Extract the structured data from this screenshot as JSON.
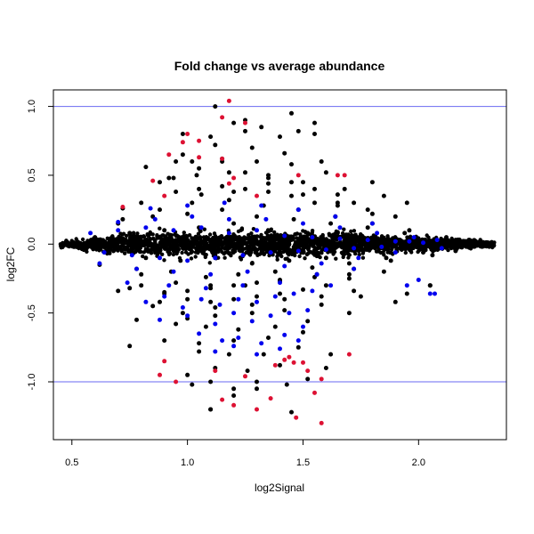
{
  "chart_data": {
    "type": "scatter",
    "title": "Fold change vs average abundance",
    "xlabel": "log2Signal",
    "ylabel": "log2FC",
    "xlim": [
      0.42,
      2.38
    ],
    "ylim": [
      -1.42,
      1.12
    ],
    "xticks": [
      0.5,
      1.0,
      1.5,
      2.0
    ],
    "xtick_labels": [
      "0.5",
      "1.0",
      "1.5",
      "2.0"
    ],
    "yticks": [
      -1.0,
      -0.5,
      0.0,
      0.5,
      1.0
    ],
    "ytick_labels": [
      "-1.0",
      "-0.5",
      "0.0",
      "0.5",
      "1.0"
    ],
    "grid": false,
    "legend": "none",
    "reference_lines": [
      {
        "axis": "y",
        "value": 1.0,
        "color": "#6a6af0"
      },
      {
        "axis": "y",
        "value": -1.0,
        "color": "#6a6af0"
      }
    ],
    "series": [
      {
        "color": "#000000",
        "x": [
          0.52,
          0.6,
          0.68,
          0.75,
          0.82,
          0.9,
          0.97,
          1.05,
          1.12,
          1.2,
          1.28,
          1.36,
          1.44,
          1.52,
          1.6,
          1.68,
          1.76,
          1.84,
          1.92,
          2.0,
          2.1,
          2.2,
          2.3,
          0.7,
          0.78,
          0.85,
          0.93,
          1.0,
          1.08,
          1.15,
          1.22,
          1.3,
          1.38,
          1.46,
          1.54,
          1.62,
          1.7,
          1.78,
          1.86,
          1.94,
          2.02,
          2.12,
          2.22,
          0.62,
          0.72,
          0.8,
          0.88,
          0.95,
          1.02,
          1.1,
          1.18,
          1.25,
          1.33,
          1.4,
          1.48,
          1.56,
          1.64,
          1.72,
          1.8,
          1.88,
          1.96,
          2.06,
          2.16,
          0.75,
          0.8,
          0.9,
          0.95,
          1.0,
          1.05,
          1.1,
          1.15,
          1.2,
          1.25,
          1.3,
          1.35,
          1.4,
          1.45,
          1.5,
          1.55,
          1.6,
          1.65,
          1.7,
          1.8,
          1.9,
          0.72,
          0.85,
          0.92,
          0.98,
          1.04,
          1.12,
          1.18,
          1.28,
          1.35,
          1.42,
          1.5,
          1.58,
          1.68,
          1.75,
          1.85,
          1.95,
          2.05,
          0.78,
          0.88,
          0.95,
          1.02,
          1.08,
          1.15,
          1.22,
          1.3,
          1.38,
          1.45,
          1.52,
          1.6,
          1.7,
          1.8,
          0.9,
          0.98,
          1.05,
          1.12,
          1.2,
          1.28,
          1.35,
          1.42,
          1.5,
          1.58,
          0.98,
          1.05,
          1.1,
          1.18,
          1.25,
          1.33,
          1.4,
          1.48,
          1.0,
          1.12,
          1.2,
          1.26,
          1.32,
          1.4,
          1.48,
          1.55,
          0.75,
          0.82,
          0.88,
          0.94,
          1.0,
          1.06,
          1.12,
          1.2,
          1.28,
          1.35,
          1.42,
          1.5,
          1.58,
          1.65,
          1.72,
          0.95,
          1.05,
          1.15,
          1.25,
          1.35,
          1.45,
          1.55,
          1.65,
          1.72,
          1.78,
          1.1,
          1.2,
          1.3,
          1.43,
          1.52,
          1.6,
          1.1,
          1.12,
          1.25,
          1.45,
          1.55,
          1.02,
          1.1,
          1.2,
          1.3,
          1.45,
          1.62,
          0.7,
          0.8,
          0.9,
          1.0,
          1.1,
          1.2,
          1.3,
          1.4,
          1.55,
          1.7,
          1.85,
          1.9,
          1.95,
          2.05
        ],
        "y": [
          -0.02,
          0.05,
          -0.05,
          0.08,
          -0.1,
          0.1,
          -0.12,
          0.12,
          -0.08,
          0.15,
          -0.14,
          0.1,
          -0.12,
          0.08,
          -0.1,
          0.06,
          -0.05,
          0.04,
          -0.03,
          0.03,
          -0.01,
          0.02,
          0.0,
          0.15,
          -0.18,
          0.2,
          -0.2,
          0.22,
          -0.24,
          0.25,
          -0.22,
          0.2,
          -0.2,
          0.18,
          -0.17,
          0.15,
          -0.14,
          0.12,
          -0.1,
          0.08,
          -0.06,
          0.05,
          0.03,
          -0.15,
          0.18,
          -0.22,
          0.25,
          -0.28,
          0.3,
          -0.3,
          0.32,
          -0.3,
          0.28,
          -0.27,
          0.25,
          -0.22,
          0.2,
          -0.18,
          0.15,
          -0.12,
          0.1,
          -0.08,
          -0.05,
          -0.32,
          0.3,
          -0.35,
          0.38,
          -0.4,
          0.4,
          -0.42,
          0.42,
          -0.4,
          0.4,
          -0.38,
          0.38,
          -0.36,
          0.35,
          -0.33,
          0.3,
          -0.3,
          0.28,
          -0.25,
          0.22,
          0.2,
          0.26,
          -0.45,
          0.48,
          -0.5,
          0.5,
          -0.52,
          0.52,
          -0.5,
          0.5,
          -0.48,
          0.45,
          -0.44,
          0.4,
          -0.38,
          0.35,
          0.3,
          -0.3,
          -0.55,
          0.45,
          -0.58,
          0.6,
          -0.6,
          0.62,
          -0.62,
          0.6,
          -0.6,
          0.58,
          -0.56,
          0.52,
          -0.5,
          0.45,
          -0.7,
          0.65,
          -0.72,
          0.72,
          -0.7,
          0.7,
          -0.68,
          0.66,
          -0.64,
          0.6,
          0.8,
          -0.78,
          0.78,
          -0.8,
          0.82,
          -0.8,
          0.78,
          -0.75,
          -0.95,
          -0.9,
          0.88,
          -0.92,
          0.85,
          -0.88,
          0.82,
          0.8,
          -0.74,
          0.56,
          -0.42,
          0.48,
          -0.54,
          0.36,
          -0.46,
          0.38,
          -0.44,
          0.44,
          -0.4,
          0.36,
          -0.38,
          0.3,
          -0.34,
          0.6,
          0.55,
          0.6,
          0.52,
          0.48,
          0.45,
          0.4,
          0.36,
          0.3,
          0.25,
          -1.0,
          -1.05,
          -1.0,
          -1.02,
          -0.98,
          -0.9,
          -1.2,
          1.0,
          0.9,
          0.95,
          0.88,
          -1.02,
          -1.2,
          -1.1,
          -1.05,
          -1.22,
          -0.8,
          -0.34,
          -0.3,
          -0.36,
          -0.34,
          -0.32,
          -0.3,
          -0.28,
          -0.26,
          -0.24,
          -0.22,
          -0.2,
          -0.42,
          -0.36,
          -0.3
        ]
      },
      {
        "color": "#0000ee",
        "x": [
          0.58,
          0.64,
          0.7,
          0.76,
          0.82,
          0.88,
          0.94,
          1.0,
          1.06,
          1.12,
          1.18,
          1.24,
          1.3,
          1.36,
          1.42,
          1.48,
          1.54,
          1.6,
          1.66,
          1.72,
          1.78,
          1.84,
          1.9,
          1.96,
          2.02,
          2.08,
          2.1,
          0.62,
          0.7,
          0.78,
          0.86,
          0.94,
          1.02,
          1.1,
          1.18,
          1.26,
          1.34,
          1.42,
          1.5,
          1.58,
          1.66,
          1.74,
          1.82,
          1.9,
          1.98,
          0.74,
          0.84,
          0.92,
          1.0,
          1.08,
          1.16,
          1.24,
          1.32,
          1.4,
          1.48,
          1.56,
          1.64,
          1.72,
          1.8,
          0.82,
          0.9,
          0.98,
          1.06,
          1.14,
          1.22,
          1.3,
          1.38,
          1.46,
          1.54,
          1.62,
          0.88,
          1.0,
          1.12,
          1.2,
          1.28,
          1.36,
          1.44,
          1.52,
          1.05,
          1.15,
          1.22,
          1.32,
          1.42,
          1.5,
          1.12,
          1.2,
          1.3,
          1.4,
          1.48,
          1.95,
          2.05,
          2.07,
          2.0
        ],
        "y": [
          0.08,
          -0.06,
          0.1,
          -0.08,
          0.12,
          -0.1,
          0.1,
          -0.12,
          0.12,
          -0.1,
          0.08,
          -0.08,
          0.1,
          -0.06,
          0.06,
          -0.05,
          0.05,
          -0.04,
          0.04,
          -0.03,
          0.03,
          -0.02,
          0.02,
          0.02,
          0.01,
          0.03,
          -0.03,
          -0.14,
          0.16,
          -0.18,
          0.18,
          -0.2,
          0.2,
          -0.22,
          0.18,
          -0.2,
          0.18,
          -0.16,
          0.15,
          -0.14,
          0.12,
          -0.1,
          0.08,
          -0.06,
          0.05,
          -0.28,
          0.26,
          -0.3,
          0.28,
          -0.32,
          0.3,
          -0.3,
          0.28,
          -0.28,
          0.25,
          -0.22,
          0.2,
          -0.18,
          0.15,
          -0.42,
          -0.38,
          -0.46,
          -0.4,
          -0.44,
          -0.4,
          -0.42,
          -0.38,
          -0.36,
          -0.34,
          -0.3,
          -0.55,
          -0.52,
          -0.58,
          -0.5,
          -0.56,
          -0.52,
          -0.5,
          -0.48,
          -0.65,
          -0.7,
          -0.68,
          -0.72,
          -0.66,
          -0.6,
          -0.78,
          -0.74,
          -0.8,
          -0.76,
          -0.7,
          -0.3,
          -0.36,
          -0.36,
          -0.26
        ]
      },
      {
        "color": "#dd1133",
        "x": [
          1.18,
          1.15,
          1.25,
          1.0,
          1.05,
          0.98,
          0.92,
          0.85,
          0.72,
          0.9,
          1.2,
          1.15,
          1.05,
          1.18,
          1.3,
          1.48,
          1.65,
          1.68,
          0.9,
          0.88,
          1.12,
          1.15,
          1.2,
          1.25,
          1.3,
          1.38,
          1.42,
          1.44,
          1.46,
          1.5,
          1.52,
          1.55,
          1.58,
          1.7,
          1.47,
          1.58,
          1.36,
          0.95
        ],
        "y": [
          1.04,
          0.92,
          0.88,
          0.8,
          0.75,
          0.74,
          0.65,
          0.46,
          0.27,
          0.35,
          0.48,
          0.62,
          0.63,
          0.44,
          0.35,
          0.5,
          0.5,
          0.5,
          -0.85,
          -0.95,
          -0.92,
          -1.13,
          -1.17,
          -0.96,
          -1.2,
          -0.88,
          -0.84,
          -0.82,
          -0.86,
          -0.86,
          -0.92,
          -1.08,
          -1.3,
          -0.8,
          -1.26,
          -0.98,
          -1.12,
          -1.0
        ]
      }
    ]
  }
}
